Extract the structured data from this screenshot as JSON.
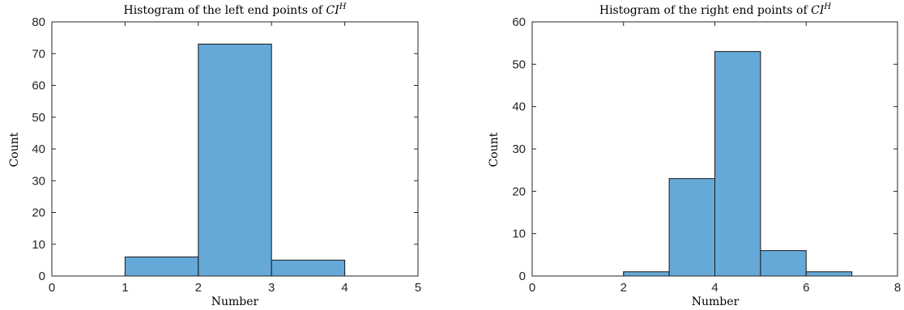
{
  "chart_data": [
    {
      "type": "bar",
      "title_prefix": "Histogram of the left end points of ",
      "title_math": "CI",
      "title_sup": "H",
      "xlabel": "Number",
      "ylabel": "Count",
      "xlim": [
        0,
        5
      ],
      "ylim": [
        0,
        80
      ],
      "xticks": [
        "0",
        "1",
        "2",
        "3",
        "4",
        "5"
      ],
      "yticks": [
        "0",
        "10",
        "20",
        "30",
        "40",
        "50",
        "60",
        "70",
        "80"
      ],
      "bins": [
        {
          "start": 1,
          "end": 2,
          "value": 6
        },
        {
          "start": 2,
          "end": 3,
          "value": 73
        },
        {
          "start": 3,
          "end": 4,
          "value": 5
        }
      ],
      "grid": false,
      "bar_color": "#65a9d8"
    },
    {
      "type": "bar",
      "title_prefix": "Histogram of the right end points of ",
      "title_math": "CI",
      "title_sup": "H",
      "xlabel": "Number",
      "ylabel": "Count",
      "xlim": [
        0,
        8
      ],
      "ylim": [
        0,
        60
      ],
      "xticks": [
        "0",
        "2",
        "4",
        "6",
        "8"
      ],
      "yticks": [
        "0",
        "10",
        "20",
        "30",
        "40",
        "50",
        "60"
      ],
      "bins": [
        {
          "start": 2,
          "end": 3,
          "value": 1
        },
        {
          "start": 3,
          "end": 4,
          "value": 23
        },
        {
          "start": 4,
          "end": 5,
          "value": 53
        },
        {
          "start": 5,
          "end": 6,
          "value": 6
        },
        {
          "start": 6,
          "end": 7,
          "value": 1
        }
      ],
      "grid": false,
      "bar_color": "#65a9d8"
    }
  ]
}
